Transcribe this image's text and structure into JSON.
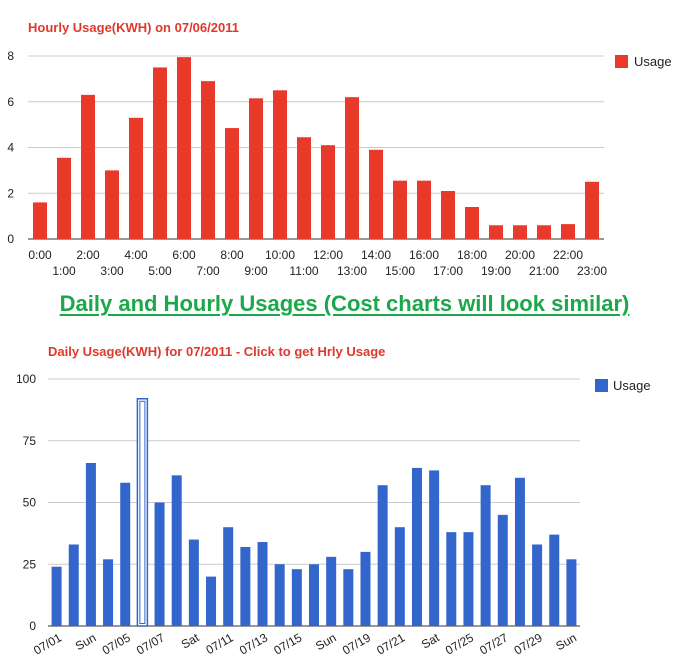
{
  "banner": {
    "text": "Daily and Hourly Usages (Cost charts will look similar)"
  },
  "colors": {
    "hourly_bar": "#e8392b",
    "daily_bar": "#3366cc",
    "title": "#e0392b",
    "grid": "#cccccc",
    "banner": "#1aa84a"
  },
  "chart_data": [
    {
      "id": "hourly",
      "type": "bar",
      "title": "Hourly Usage(KWH) on 07/06/2011",
      "xlabel": "",
      "ylabel": "",
      "ylim": [
        0,
        8
      ],
      "yticks": [
        "0",
        "2",
        "4",
        "6",
        "8"
      ],
      "legend": {
        "label": "Usage",
        "position": "right"
      },
      "grid": true,
      "categories": [
        "0:00",
        "1:00",
        "2:00",
        "3:00",
        "4:00",
        "5:00",
        "6:00",
        "7:00",
        "8:00",
        "9:00",
        "10:00",
        "11:00",
        "12:00",
        "13:00",
        "14:00",
        "15:00",
        "16:00",
        "17:00",
        "18:00",
        "19:00",
        "20:00",
        "21:00",
        "22:00",
        "23:00"
      ],
      "values": [
        1.6,
        3.55,
        6.3,
        3.0,
        5.3,
        7.5,
        7.95,
        6.9,
        4.85,
        6.15,
        6.5,
        4.45,
        4.1,
        6.2,
        3.9,
        2.55,
        2.55,
        2.1,
        1.4,
        0.6,
        0.6,
        0.6,
        0.65,
        2.5
      ]
    },
    {
      "id": "daily",
      "type": "bar",
      "title": "Daily Usage(KWH) for 07/2011 - Click to get Hrly Usage",
      "xlabel": "",
      "ylabel": "",
      "ylim": [
        0,
        100
      ],
      "yticks": [
        "0",
        "25",
        "50",
        "75",
        "100"
      ],
      "legend": {
        "label": "Usage",
        "position": "right"
      },
      "grid": true,
      "selected_index": 5,
      "categories": [
        "07/01",
        "",
        "Sun",
        "",
        "07/05",
        "",
        "07/07",
        "",
        "Sat",
        "",
        "07/11",
        "",
        "07/13",
        "",
        "07/15",
        "",
        "Sun",
        "",
        "07/19",
        "",
        "07/21",
        "",
        "Sat",
        "",
        "07/25",
        "",
        "07/27",
        "",
        "07/29",
        "",
        "Sun"
      ],
      "values": [
        24,
        33,
        66,
        27,
        58,
        92,
        50,
        61,
        35,
        20,
        40,
        32,
        34,
        25,
        23,
        25,
        28,
        23,
        30,
        57,
        40,
        64,
        63,
        38,
        38,
        57,
        45,
        60,
        33,
        37,
        27
      ]
    }
  ]
}
